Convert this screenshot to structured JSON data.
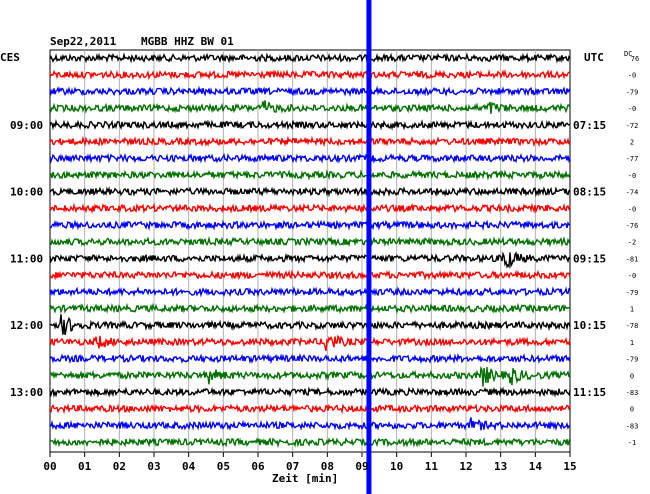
{
  "header": {
    "date": "Sep22,2011",
    "station": "MGBB HHZ BW 01",
    "left_zone": "CES",
    "right_zone": "UTC",
    "dc_label": "DC"
  },
  "chart_data": {
    "type": "line",
    "title": "",
    "xlabel": "Zeit [min]",
    "xlim": [
      0,
      15
    ],
    "x_ticks": [
      "00",
      "01",
      "02",
      "03",
      "04",
      "05",
      "06",
      "07",
      "08",
      "09",
      "10",
      "11",
      "12",
      "13",
      "14",
      "15"
    ],
    "trace_colors": [
      "#000000",
      "#ff0000",
      "#0000ff",
      "#007000"
    ],
    "left_time_labels": [
      {
        "row": 4,
        "label": "09:00"
      },
      {
        "row": 8,
        "label": "10:00"
      },
      {
        "row": 12,
        "label": "11:00"
      },
      {
        "row": 16,
        "label": "12:00"
      },
      {
        "row": 20,
        "label": "13:00"
      }
    ],
    "right_time_labels": [
      {
        "row": 4,
        "label": "07:15"
      },
      {
        "row": 8,
        "label": "08:15"
      },
      {
        "row": 12,
        "label": "09:15"
      },
      {
        "row": 16,
        "label": "10:15"
      },
      {
        "row": 20,
        "label": "11:15"
      }
    ],
    "dc_offsets": [
      "76",
      "-0",
      "-79",
      "-0",
      "-72",
      "2",
      "-77",
      "-0",
      "-74",
      "-0",
      "-76",
      "-2",
      "-81",
      "-0",
      "-79",
      "1",
      "-78",
      "1",
      "-79",
      "0",
      "-83",
      "0",
      "-83",
      "-1"
    ],
    "marker_minute": 9.2,
    "marker_color": "#0000ff",
    "rows": 24,
    "events": [
      {
        "row": 3,
        "minute": 6.2,
        "amp": 1.6
      },
      {
        "row": 3,
        "minute": 12.7,
        "amp": 1.4
      },
      {
        "row": 12,
        "minute": 13.1,
        "amp": 4.0
      },
      {
        "row": 16,
        "minute": 0.4,
        "amp": 2.6
      },
      {
        "row": 17,
        "minute": 1.4,
        "amp": 1.5
      },
      {
        "row": 17,
        "minute": 8.0,
        "amp": 3.0
      },
      {
        "row": 19,
        "minute": 4.6,
        "amp": 2.0
      },
      {
        "row": 19,
        "minute": 12.5,
        "amp": 3.0
      },
      {
        "row": 19,
        "minute": 13.3,
        "amp": 2.5
      },
      {
        "row": 22,
        "minute": 12.2,
        "amp": 1.6
      }
    ]
  }
}
